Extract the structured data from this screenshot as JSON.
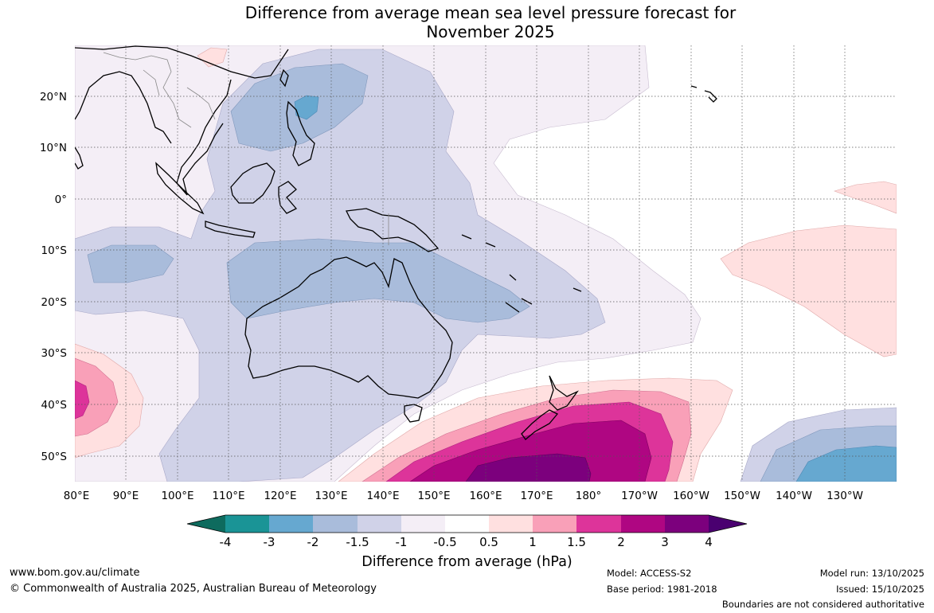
{
  "title": {
    "line1": "Difference from average mean sea level pressure forecast for",
    "line2": "November 2025"
  },
  "map": {
    "lat_labels": [
      "20°N",
      "10°N",
      "0°",
      "10°S",
      "20°S",
      "30°S",
      "40°S",
      "50°S"
    ],
    "lon_labels": [
      "80°E",
      "90°E",
      "100°E",
      "110°E",
      "120°E",
      "130°E",
      "140°E",
      "150°E",
      "160°E",
      "170°E",
      "180°",
      "170°W",
      "160°W",
      "150°W",
      "140°W",
      "130°W"
    ]
  },
  "colorbar": {
    "title": "Difference from average (hPa)",
    "ticks": [
      "-4",
      "-3",
      "-2",
      "-1.5",
      "-1",
      "-0.5",
      "0.5",
      "1",
      "1.5",
      "2",
      "3",
      "4"
    ],
    "colors": [
      "#0e6b5e",
      "#1a9496",
      "#66a8d0",
      "#a9bcdb",
      "#d0d2e8",
      "#f4eef6",
      "#ffffff",
      "#ffe0e0",
      "#f9a0b8",
      "#dd349a",
      "#af0682",
      "#7c007d",
      "#4a0070"
    ]
  },
  "footer": {
    "url": "www.bom.gov.au/climate",
    "copyright": "© Commonwealth of Australia 2025, Australian Bureau of Meteorology",
    "model": "Model: ACCESS-S2",
    "base_period": "Base period: 1981-2018",
    "model_run": "Model run: 13/10/2025",
    "issued": "Issued: 15/10/2025",
    "disclaimer": "Boundaries are not considered authoritative"
  }
}
